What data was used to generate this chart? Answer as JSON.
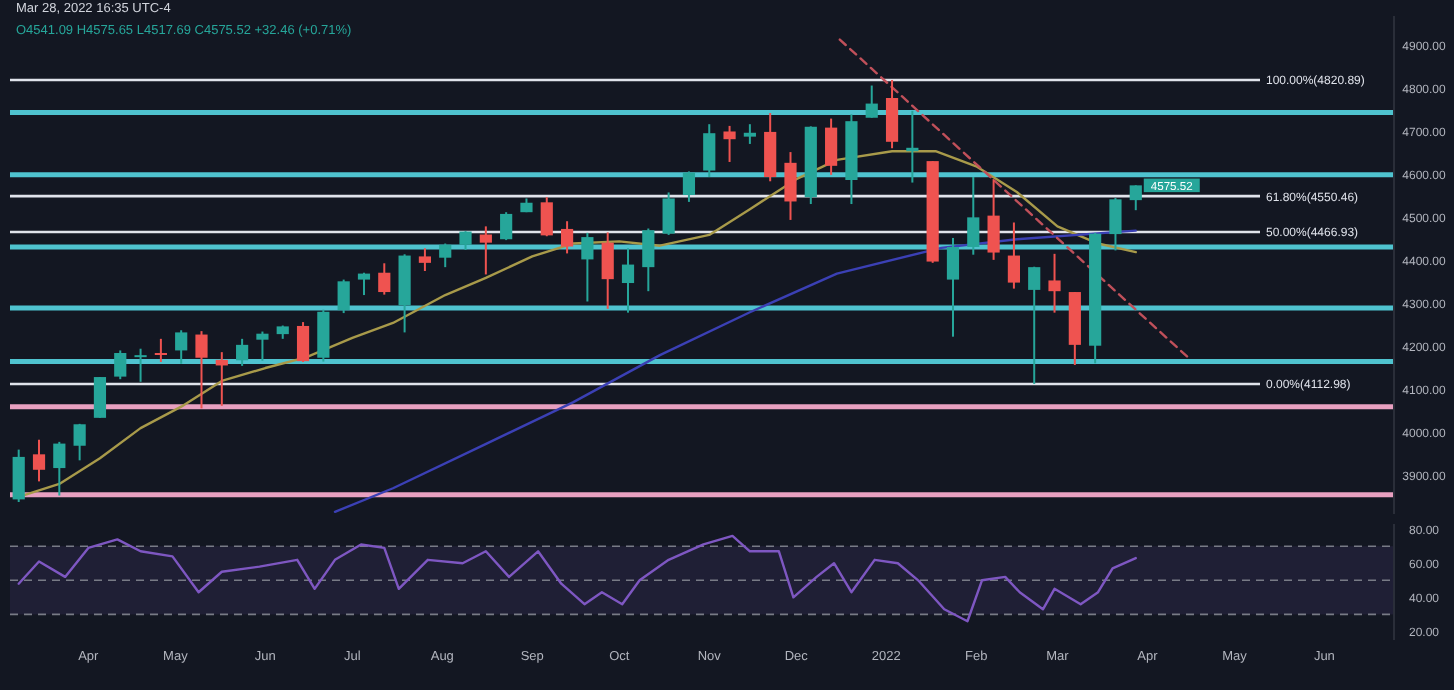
{
  "chart_data": [
    {
      "type": "candlestick",
      "subtitle": "O4541.09 H4575.65 L4517.69 C4575.52 +32.46 (+0.71%)",
      "annotations": [
        "Mar 28, 2022 16:35 UTC-4",
        {
          "text": "4575.52",
          "x": "2022-03-28",
          "y": 4575.52
        }
      ],
      "x": [
        "2021-03-08",
        "2021-03-15",
        "2021-03-22",
        "2021-03-29",
        "2021-04-05",
        "2021-04-12",
        "2021-04-19",
        "2021-04-26",
        "2021-05-03",
        "2021-05-10",
        "2021-05-17",
        "2021-05-24",
        "2021-05-31",
        "2021-06-07",
        "2021-06-14",
        "2021-06-21",
        "2021-06-28",
        "2021-07-05",
        "2021-07-12",
        "2021-07-19",
        "2021-07-26",
        "2021-08-02",
        "2021-08-09",
        "2021-08-16",
        "2021-08-23",
        "2021-08-30",
        "2021-09-06",
        "2021-09-13",
        "2021-09-20",
        "2021-09-27",
        "2021-10-04",
        "2021-10-11",
        "2021-10-18",
        "2021-10-25",
        "2021-11-01",
        "2021-11-08",
        "2021-11-15",
        "2021-11-22",
        "2021-11-29",
        "2021-12-06",
        "2021-12-13",
        "2021-12-20",
        "2021-12-27",
        "2022-01-03",
        "2022-01-10",
        "2022-01-17",
        "2022-01-24",
        "2022-01-31",
        "2022-02-07",
        "2022-02-14",
        "2022-02-21",
        "2022-02-28",
        "2022-03-07",
        "2022-03-14",
        "2022-03-21",
        "2022-03-28"
      ],
      "ohlc": [
        [
          3844,
          3960,
          3838,
          3943
        ],
        [
          3949,
          3983,
          3886,
          3913
        ],
        [
          3917,
          3978,
          3853,
          3974
        ],
        [
          3969,
          4020,
          3935,
          4019
        ],
        [
          4034,
          4129,
          4034,
          4129
        ],
        [
          4130,
          4191,
          4124,
          4185
        ],
        [
          4179,
          4195,
          4118,
          4180
        ],
        [
          4185,
          4218,
          4164,
          4181
        ],
        [
          4191,
          4238,
          4160,
          4233
        ],
        [
          4228,
          4236,
          4056,
          4174
        ],
        [
          4169,
          4187,
          4062,
          4156
        ],
        [
          4168,
          4218,
          4155,
          4204
        ],
        [
          4216,
          4235,
          4167,
          4230
        ],
        [
          4229,
          4249,
          4218,
          4247
        ],
        [
          4248,
          4257,
          4164,
          4166
        ],
        [
          4174,
          4286,
          4165,
          4281
        ],
        [
          4285,
          4356,
          4278,
          4352
        ],
        [
          4356,
          4372,
          4320,
          4370
        ],
        [
          4372,
          4394,
          4321,
          4327
        ],
        [
          4296,
          4415,
          4233,
          4412
        ],
        [
          4410,
          4429,
          4376,
          4395
        ],
        [
          4407,
          4440,
          4385,
          4437
        ],
        [
          4437,
          4469,
          4425,
          4468
        ],
        [
          4461,
          4480,
          4368,
          4442
        ],
        [
          4450,
          4513,
          4448,
          4509
        ],
        [
          4513,
          4545,
          4513,
          4535
        ],
        [
          4536,
          4548,
          4457,
          4459
        ],
        [
          4474,
          4492,
          4417,
          4433
        ],
        [
          4403,
          4465,
          4305,
          4455
        ],
        [
          4442,
          4466,
          4288,
          4357
        ],
        [
          4348,
          4429,
          4279,
          4391
        ],
        [
          4385,
          4475,
          4329,
          4471
        ],
        [
          4463,
          4559,
          4460,
          4545
        ],
        [
          4553,
          4608,
          4537,
          4605
        ],
        [
          4610,
          4718,
          4595,
          4697
        ],
        [
          4701,
          4714,
          4630,
          4683
        ],
        [
          4689,
          4718,
          4672,
          4698
        ],
        [
          4700,
          4744,
          4585,
          4595
        ],
        [
          4628,
          4653,
          4495,
          4538
        ],
        [
          4548,
          4713,
          4532,
          4712
        ],
        [
          4710,
          4731,
          4600,
          4621
        ],
        [
          4588,
          4741,
          4532,
          4725
        ],
        [
          4733,
          4808,
          4733,
          4766
        ],
        [
          4779,
          4821,
          4662,
          4677
        ],
        [
          4655,
          4749,
          4582,
          4663
        ],
        [
          4632,
          4632,
          4395,
          4398
        ],
        [
          4356,
          4453,
          4223,
          4432
        ],
        [
          4432,
          4595,
          4414,
          4501
        ],
        [
          4505,
          4590,
          4402,
          4419
        ],
        [
          4412,
          4489,
          4335,
          4349
        ],
        [
          4332,
          4386,
          4113,
          4385
        ],
        [
          4354,
          4416,
          4279,
          4329
        ],
        [
          4327,
          4327,
          4157,
          4204
        ],
        [
          4202,
          4465,
          4161,
          4463
        ],
        [
          4462,
          4546,
          4424,
          4543
        ],
        [
          4541.09,
          4575.65,
          4517.69,
          4575.52
        ]
      ],
      "colors": [
        "#26a69a",
        "#ef5350",
        "#26a69a",
        "#26a69a",
        "#26a69a",
        "#26a69a",
        "#26a69a",
        "#ef5350",
        "#26a69a",
        "#ef5350",
        "#ef5350",
        "#26a69a",
        "#26a69a",
        "#26a69a",
        "#ef5350",
        "#26a69a",
        "#26a69a",
        "#26a69a",
        "#ef5350",
        "#26a69a",
        "#ef5350",
        "#26a69a",
        "#26a69a",
        "#ef5350",
        "#26a69a",
        "#26a69a",
        "#ef5350",
        "#ef5350",
        "#26a69a",
        "#ef5350",
        "#26a69a",
        "#26a69a",
        "#26a69a",
        "#26a69a",
        "#26a69a",
        "#ef5350",
        "#26a69a",
        "#ef5350",
        "#ef5350",
        "#26a69a",
        "#ef5350",
        "#26a69a",
        "#26a69a",
        "#ef5350",
        "#26a69a",
        "#ef5350",
        "#26a69a",
        "#26a69a",
        "#ef5350",
        "#ef5350",
        "#26a69a",
        "#ef5350",
        "#ef5350",
        "#26a69a",
        "#26a69a",
        "#26a69a"
      ],
      "series": [
        {
          "type": "line",
          "color": "#a89a4a",
          "x": [
            "2021-03-08",
            "2021-03-22",
            "2021-04-05",
            "2021-04-19",
            "2021-05-03",
            "2021-05-17",
            "2021-06-01",
            "2021-06-15",
            "2021-07-01",
            "2021-07-15",
            "2021-08-02",
            "2021-08-16",
            "2021-09-01",
            "2021-09-15",
            "2021-10-01",
            "2021-10-15",
            "2021-11-01",
            "2021-11-15",
            "2021-12-01",
            "2021-12-15",
            "2022-01-03",
            "2022-01-18",
            "2022-02-01",
            "2022-02-15",
            "2022-03-01",
            "2022-03-15",
            "2022-03-28"
          ],
          "values": [
            3850,
            3880,
            3940,
            4010,
            4060,
            4120,
            4150,
            4175,
            4220,
            4255,
            4320,
            4360,
            4410,
            4440,
            4445,
            4435,
            4460,
            4520,
            4590,
            4635,
            4655,
            4655,
            4620,
            4560,
            4480,
            4440,
            4420
          ]
        },
        {
          "type": "line",
          "color": "#3b40b5",
          "x": [
            "2021-06-25",
            "2021-07-15",
            "2021-08-15",
            "2021-09-15",
            "2021-10-15",
            "2021-11-15",
            "2021-12-15",
            "2022-01-20",
            "2022-02-15",
            "2022-03-28"
          ],
          "values": [
            3815,
            3870,
            3970,
            4070,
            4180,
            4280,
            4370,
            4430,
            4450,
            4470
          ]
        },
        {
          "type": "line",
          "color": "#c0505a",
          "line_style": "dashed",
          "x": [
            "2021-12-16",
            "2022-04-15"
          ],
          "values": [
            4915,
            4175
          ]
        }
      ],
      "ref_lines": [
        {
          "axis": "y",
          "value": 4820.89,
          "label": "100.00%(4820.89)",
          "color": "#e0e3eb"
        },
        {
          "axis": "y",
          "value": 4550.46,
          "label": "61.80%(4550.46)",
          "color": "#e0e3eb"
        },
        {
          "axis": "y",
          "value": 4466.93,
          "label": "50.00%(4466.93)",
          "color": "#e0e3eb"
        },
        {
          "axis": "y",
          "value": 4112.98,
          "label": "0.00%(4112.98)",
          "color": "#e0e3eb"
        },
        {
          "axis": "y",
          "value": 4745,
          "color": "#4fc3cf"
        },
        {
          "axis": "y",
          "value": 4600,
          "color": "#4fc3cf"
        },
        {
          "axis": "y",
          "value": 4432,
          "color": "#4fc3cf"
        },
        {
          "axis": "y",
          "value": 4290,
          "color": "#4fc3cf"
        },
        {
          "axis": "y",
          "value": 4165,
          "color": "#4fc3cf"
        },
        {
          "axis": "y",
          "value": 4060,
          "color": "#e8a0c0"
        },
        {
          "axis": "y",
          "value": 3855,
          "color": "#e8a0c0"
        }
      ],
      "xlim": [
        "2021-03-05",
        "2022-06-25"
      ],
      "ylim": [
        3810,
        4970
      ],
      "yticks": [
        {
          "value": 3900,
          "label": "3900.00"
        },
        {
          "value": 4000,
          "label": "4000.00"
        },
        {
          "value": 4100,
          "label": "4100.00"
        },
        {
          "value": 4200,
          "label": "4200.00"
        },
        {
          "value": 4300,
          "label": "4300.00"
        },
        {
          "value": 4400,
          "label": "4400.00"
        },
        {
          "value": 4500,
          "label": "4500.00"
        },
        {
          "value": 4600,
          "label": "4600.00"
        },
        {
          "value": 4700,
          "label": "4700.00"
        },
        {
          "value": 4800,
          "label": "4800.00"
        },
        {
          "value": 4900,
          "label": "4900.00"
        }
      ],
      "tick_labels": "y"
    },
    {
      "type": "line",
      "series": [
        {
          "color": "#7e57c2",
          "x": [
            "2021-03-08",
            "2021-03-15",
            "2021-03-24",
            "2021-04-01",
            "2021-04-11",
            "2021-04-19",
            "2021-04-30",
            "2021-05-09",
            "2021-05-17",
            "2021-05-30",
            "2021-06-12",
            "2021-06-18",
            "2021-06-25",
            "2021-07-04",
            "2021-07-12",
            "2021-07-17",
            "2021-07-27",
            "2021-08-08",
            "2021-08-16",
            "2021-08-24",
            "2021-09-03",
            "2021-09-11",
            "2021-09-19",
            "2021-09-25",
            "2021-10-02",
            "2021-10-08",
            "2021-10-18",
            "2021-10-30",
            "2021-11-09",
            "2021-11-15",
            "2021-11-25",
            "2021-11-30",
            "2021-12-08",
            "2021-12-14",
            "2021-12-20",
            "2021-12-28",
            "2022-01-05",
            "2022-01-12",
            "2022-01-21",
            "2022-01-29",
            "2022-02-03",
            "2022-02-11",
            "2022-02-16",
            "2022-02-24",
            "2022-02-28",
            "2022-03-09",
            "2022-03-15",
            "2022-03-20",
            "2022-03-28"
          ],
          "values": [
            48,
            61,
            52,
            69,
            74,
            67,
            64,
            43,
            55,
            58,
            62,
            45,
            62,
            71,
            69,
            45,
            62,
            60,
            67,
            52,
            67,
            48,
            36,
            43,
            36,
            50,
            62,
            71,
            76,
            67,
            67,
            40,
            52,
            60,
            43,
            62,
            60,
            50,
            33,
            26,
            50,
            52,
            43,
            33,
            45,
            36,
            43,
            57,
            63
          ]
        }
      ],
      "bands": [
        {
          "axis": "y",
          "from": 30,
          "to": 70,
          "color": "#7e57c2"
        }
      ],
      "ref_lines": [
        {
          "axis": "y",
          "value": 70,
          "color": "#787b86",
          "line_style": "dashed"
        },
        {
          "axis": "y",
          "value": 50,
          "color": "#787b86",
          "line_style": "dashed"
        },
        {
          "axis": "y",
          "value": 30,
          "color": "#787b86",
          "line_style": "dashed"
        }
      ],
      "xlim": [
        "2021-03-05",
        "2022-06-25"
      ],
      "ylim": [
        15,
        83
      ],
      "yticks": [
        {
          "value": 20,
          "label": "20.00"
        },
        {
          "value": 40,
          "label": "40.00"
        },
        {
          "value": 60,
          "label": "60.00"
        },
        {
          "value": 80,
          "label": "80.00"
        }
      ],
      "xticks": [
        {
          "value": "2021-04-01",
          "label": "Apr"
        },
        {
          "value": "2021-05-01",
          "label": "May"
        },
        {
          "value": "2021-06-01",
          "label": "Jun"
        },
        {
          "value": "2021-07-01",
          "label": "Jul"
        },
        {
          "value": "2021-08-01",
          "label": "Aug"
        },
        {
          "value": "2021-09-01",
          "label": "Sep"
        },
        {
          "value": "2021-10-01",
          "label": "Oct"
        },
        {
          "value": "2021-11-01",
          "label": "Nov"
        },
        {
          "value": "2021-12-01",
          "label": "Dec"
        },
        {
          "value": "2022-01-01",
          "label": "2022"
        },
        {
          "value": "2022-02-01",
          "label": "Feb"
        },
        {
          "value": "2022-03-01",
          "label": "Mar"
        },
        {
          "value": "2022-04-01",
          "label": "Apr"
        },
        {
          "value": "2022-05-01",
          "label": "May"
        },
        {
          "value": "2022-06-01",
          "label": "Jun"
        }
      ]
    }
  ]
}
